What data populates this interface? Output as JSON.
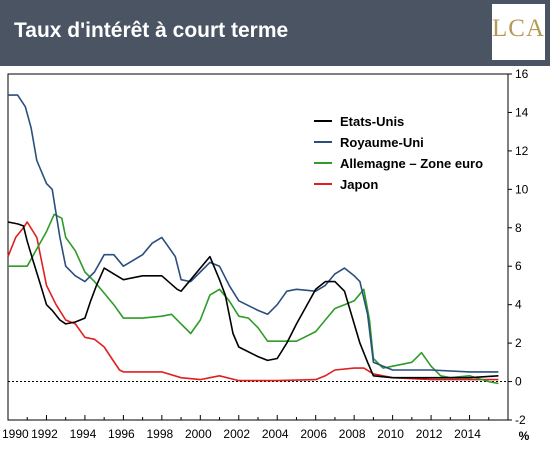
{
  "header": {
    "title": "Taux d'intérêt à court terme",
    "logo_text": "LCA"
  },
  "chart_data": {
    "type": "line",
    "title": "Taux d'intérêt à court terme",
    "xlabel": "",
    "ylabel": "%",
    "xlim": [
      1990,
      2016
    ],
    "ylim": [
      -2,
      16
    ],
    "x_ticks": [
      "1990",
      "1992",
      "1994",
      "1996",
      "1998",
      "2000",
      "2002",
      "2004",
      "2006",
      "2008",
      "2010",
      "2012",
      "2014"
    ],
    "y_ticks": [
      "-2",
      "0",
      "2",
      "4",
      "6",
      "8",
      "10",
      "12",
      "14",
      "16"
    ],
    "legend_position": "top-right",
    "zero_line": "dashed",
    "series": [
      {
        "name": "Etats-Unis",
        "color": "#000000",
        "x": [
          1990,
          1990.5,
          1990.8,
          1991,
          1991.3,
          1991.7,
          1992,
          1992.3,
          1992.7,
          1993,
          1993.5,
          1994,
          1994.3,
          1994.6,
          1995,
          1995.5,
          1996,
          1997,
          1998,
          1998.8,
          1999,
          1999.5,
          2000,
          2000.5,
          2001,
          2001.3,
          2001.7,
          2002,
          2003,
          2003.5,
          2004,
          2004.5,
          2005,
          2005.5,
          2006,
          2006.5,
          2007,
          2007.5,
          2008,
          2008.3,
          2008.7,
          2009,
          2010,
          2012,
          2014,
          2015.5
        ],
        "values": [
          8.3,
          8.2,
          8.1,
          7.3,
          6.3,
          5.0,
          4.0,
          3.7,
          3.2,
          3.0,
          3.1,
          3.3,
          4.2,
          5.0,
          5.9,
          5.6,
          5.3,
          5.5,
          5.5,
          4.8,
          4.7,
          5.3,
          5.9,
          6.5,
          5.3,
          4.5,
          2.5,
          1.8,
          1.3,
          1.1,
          1.2,
          2.0,
          3.0,
          3.9,
          4.8,
          5.2,
          5.2,
          4.7,
          3.0,
          2.0,
          1.0,
          0.3,
          0.2,
          0.2,
          0.2,
          0.3
        ]
      },
      {
        "name": "Royaume-Uni",
        "color": "#2b4f7c",
        "x": [
          1990,
          1990.5,
          1990.9,
          1991.2,
          1991.5,
          1992,
          1992.3,
          1992.7,
          1993,
          1993.5,
          1994,
          1994.5,
          1995,
          1995.5,
          1996,
          1997,
          1997.5,
          1998,
          1998.7,
          1999,
          1999.5,
          2000,
          2000.5,
          2001,
          2001.5,
          2002,
          2003,
          2003.5,
          2004,
          2004.5,
          2005,
          2006,
          2006.5,
          2007,
          2007.5,
          2008,
          2008.3,
          2008.7,
          2009,
          2010,
          2012,
          2014,
          2015.5
        ],
        "values": [
          14.9,
          14.9,
          14.3,
          13.2,
          11.5,
          10.3,
          10.0,
          7.5,
          6.0,
          5.5,
          5.2,
          5.7,
          6.6,
          6.6,
          6.0,
          6.6,
          7.2,
          7.5,
          6.5,
          5.3,
          5.2,
          5.7,
          6.2,
          6.0,
          5.0,
          4.2,
          3.7,
          3.5,
          4.0,
          4.7,
          4.8,
          4.7,
          5.0,
          5.6,
          5.9,
          5.5,
          5.2,
          3.5,
          1.0,
          0.6,
          0.6,
          0.5,
          0.5
        ]
      },
      {
        "name": "Allemagne – Zone euro",
        "color": "#2e9c27",
        "x": [
          1990,
          1990.5,
          1991,
          1991.5,
          1992,
          1992.4,
          1992.8,
          1993,
          1993.5,
          1994,
          1994.5,
          1995,
          1995.5,
          1996,
          1997,
          1998,
          1998.5,
          1999,
          1999.5,
          2000,
          2000.5,
          2001,
          2001.5,
          2002,
          2002.5,
          2003,
          2003.5,
          2004,
          2005,
          2006,
          2006.5,
          2007,
          2007.5,
          2008,
          2008.5,
          2008.8,
          2009,
          2009.5,
          2010,
          2011,
          2011.5,
          2012,
          2012.5,
          2013,
          2014,
          2015,
          2015.5
        ],
        "values": [
          6.0,
          6.0,
          6.0,
          6.9,
          7.8,
          8.7,
          8.5,
          7.5,
          6.8,
          5.7,
          5.2,
          4.6,
          4.0,
          3.3,
          3.3,
          3.4,
          3.5,
          3.0,
          2.5,
          3.2,
          4.5,
          4.8,
          4.2,
          3.4,
          3.3,
          2.8,
          2.1,
          2.1,
          2.1,
          2.6,
          3.2,
          3.8,
          4.0,
          4.2,
          4.8,
          3.2,
          1.2,
          0.7,
          0.8,
          1.0,
          1.5,
          0.8,
          0.3,
          0.2,
          0.3,
          0.0,
          -0.1
        ]
      },
      {
        "name": "Japon",
        "color": "#e02020",
        "x": [
          1990,
          1990.4,
          1990.8,
          1991,
          1991.5,
          1992,
          1992.5,
          1993,
          1993.5,
          1994,
          1994.5,
          1995,
          1995.4,
          1995.8,
          1996,
          1997,
          1998,
          1999,
          2000,
          2000.5,
          2001,
          2002,
          2004,
          2006,
          2006.5,
          2007,
          2008,
          2008.5,
          2009,
          2010,
          2012,
          2014,
          2015.5
        ],
        "values": [
          6.5,
          7.5,
          8.0,
          8.3,
          7.5,
          5.0,
          4.0,
          3.2,
          3.0,
          2.3,
          2.2,
          1.8,
          1.2,
          0.6,
          0.5,
          0.5,
          0.5,
          0.2,
          0.1,
          0.2,
          0.3,
          0.05,
          0.05,
          0.1,
          0.3,
          0.6,
          0.7,
          0.7,
          0.4,
          0.2,
          0.1,
          0.1,
          0.1
        ]
      }
    ]
  }
}
